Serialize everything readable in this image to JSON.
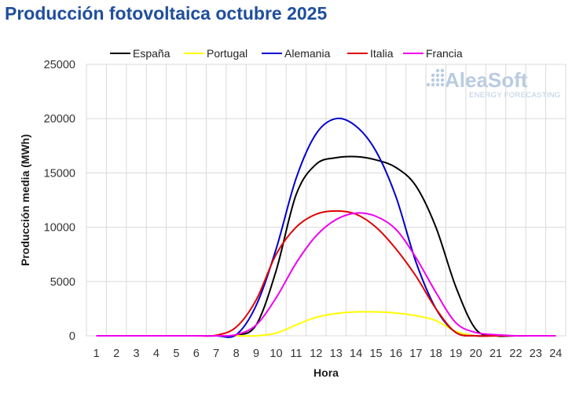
{
  "chart_data": {
    "type": "line",
    "title": "Producción fotovoltaica octubre 2025",
    "xlabel": "Hora",
    "ylabel": "Producción media (MWh)",
    "x": [
      1,
      2,
      3,
      4,
      5,
      6,
      7,
      8,
      9,
      10,
      11,
      12,
      13,
      14,
      15,
      16,
      17,
      18,
      19,
      20,
      21,
      22,
      23,
      24
    ],
    "ylim": [
      0,
      25000
    ],
    "yticks": [
      0,
      5000,
      10000,
      15000,
      20000,
      25000
    ],
    "grid": true,
    "legend_position": "top",
    "series": [
      {
        "name": "España",
        "color": "#000000",
        "values": [
          0,
          0,
          0,
          0,
          0,
          0,
          0,
          50,
          1000,
          6000,
          13000,
          15800,
          16400,
          16500,
          16200,
          15500,
          13800,
          10000,
          4500,
          600,
          0,
          0,
          0,
          0
        ]
      },
      {
        "name": "Portugal",
        "color": "#ffff00",
        "values": [
          0,
          0,
          0,
          0,
          0,
          0,
          0,
          0,
          0,
          250,
          1000,
          1700,
          2050,
          2200,
          2200,
          2100,
          1850,
          1400,
          400,
          0,
          0,
          0,
          0,
          0
        ]
      },
      {
        "name": "Alemania",
        "color": "#0000cc",
        "values": [
          0,
          0,
          0,
          0,
          0,
          0,
          0,
          100,
          2800,
          8000,
          14500,
          18600,
          20000,
          19300,
          17000,
          12800,
          6800,
          2500,
          300,
          0,
          0,
          0,
          0,
          0
        ]
      },
      {
        "name": "Italia",
        "color": "#e00000",
        "values": [
          0,
          0,
          0,
          0,
          0,
          0,
          50,
          800,
          3300,
          7500,
          10000,
          11200,
          11500,
          11200,
          10000,
          8000,
          5500,
          2500,
          300,
          0,
          0,
          0,
          0,
          0
        ]
      },
      {
        "name": "Francia",
        "color": "#ee00ee",
        "values": [
          0,
          0,
          0,
          0,
          0,
          0,
          0,
          100,
          1000,
          3500,
          6700,
          9200,
          10700,
          11300,
          11000,
          9800,
          7200,
          4000,
          1200,
          300,
          100,
          0,
          0,
          0
        ]
      }
    ]
  },
  "logo": {
    "name": "AleaSoft",
    "tagline": "ENERGY FORECASTING"
  }
}
